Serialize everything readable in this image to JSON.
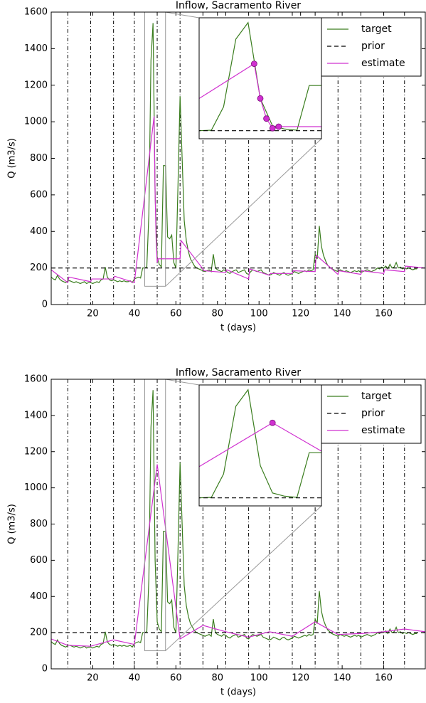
{
  "chart_data": [
    {
      "type": "line",
      "title": "Inflow, Sacramento River",
      "xlabel": "t (days)",
      "ylabel": "Q (m3/s)",
      "xlim": [
        0,
        180
      ],
      "ylim": [
        0,
        1600
      ],
      "xticks": [
        20,
        40,
        60,
        80,
        100,
        120,
        140,
        160
      ],
      "yticks": [
        0,
        200,
        400,
        600,
        800,
        1000,
        1200,
        1400,
        1600
      ],
      "vlines": [
        8,
        19,
        30,
        40,
        51,
        62,
        73,
        84,
        95,
        105,
        116,
        127,
        138,
        149,
        160,
        170
      ],
      "legend": "upper right",
      "inset": {
        "xlim": [
          45,
          55
        ],
        "ylim": [
          100,
          1600
        ]
      },
      "series": [
        {
          "name": "target",
          "color": "#3a7d1e",
          "linestyle": "solid",
          "x": [
            0,
            1,
            2,
            3,
            4,
            5,
            6,
            7,
            8,
            9,
            10,
            11,
            12,
            13,
            14,
            15,
            16,
            17,
            18,
            19,
            20,
            21,
            22,
            23,
            24,
            25,
            26,
            27,
            28,
            29,
            30,
            31,
            32,
            33,
            34,
            35,
            36,
            37,
            38,
            39,
            40,
            41,
            42,
            43,
            44,
            45,
            46,
            47,
            48,
            49,
            50,
            51,
            52,
            53,
            54,
            55,
            56,
            57,
            58,
            59,
            60,
            61,
            62,
            63,
            64,
            65,
            66,
            67,
            68,
            69,
            70,
            71,
            72,
            73,
            74,
            75,
            76,
            77,
            78,
            79,
            80,
            81,
            82,
            83,
            84,
            85,
            86,
            87,
            88,
            89,
            90,
            91,
            92,
            93,
            94,
            95,
            96,
            97,
            98,
            99,
            100,
            101,
            102,
            103,
            104,
            105,
            106,
            107,
            108,
            109,
            110,
            111,
            112,
            113,
            114,
            115,
            116,
            117,
            118,
            119,
            120,
            121,
            122,
            123,
            124,
            125,
            126,
            127,
            128,
            129,
            130,
            131,
            132,
            133,
            134,
            135,
            136,
            137,
            138,
            139,
            140,
            141,
            142,
            143,
            144,
            145,
            146,
            147,
            148,
            149,
            150,
            151,
            152,
            153,
            154,
            155,
            156,
            157,
            158,
            159,
            160,
            161,
            162,
            163,
            164,
            165,
            166,
            167,
            168,
            169,
            170,
            171,
            172,
            173,
            174,
            175,
            176
          ],
          "values": [
            150,
            140,
            135,
            160,
            140,
            130,
            125,
            120,
            130,
            130,
            125,
            120,
            125,
            120,
            115,
            120,
            125,
            115,
            120,
            120,
            115,
            120,
            125,
            120,
            135,
            140,
            205,
            150,
            135,
            130,
            135,
            130,
            125,
            130,
            125,
            130,
            125,
            125,
            130,
            120,
            140,
            145,
            150,
            145,
            200,
            200,
            206,
            497,
            1335,
            1540,
            600,
            260,
            220,
            206,
            760,
            760,
            370,
            360,
            380,
            230,
            200,
            650,
            1140,
            800,
            460,
            350,
            290,
            250,
            230,
            210,
            200,
            195,
            190,
            185,
            180,
            185,
            190,
            180,
            275,
            200,
            190,
            185,
            180,
            190,
            185,
            175,
            170,
            180,
            185,
            190,
            175,
            180,
            185,
            190,
            170,
            165,
            180,
            190,
            185,
            180,
            185,
            190,
            175,
            170,
            165,
            160,
            165,
            175,
            170,
            165,
            160,
            170,
            175,
            165,
            160,
            165,
            170,
            180,
            175,
            170,
            175,
            180,
            185,
            180,
            190,
            185,
            190,
            275,
            250,
            430,
            320,
            270,
            240,
            215,
            205,
            195,
            190,
            185,
            180,
            190,
            185,
            180,
            185,
            180,
            175,
            180,
            185,
            180,
            185,
            175,
            180,
            185,
            190,
            185,
            180,
            185,
            190,
            200,
            195,
            205,
            200,
            210,
            195,
            220,
            200,
            205,
            230,
            200,
            205,
            195,
            200,
            195,
            200,
            195,
            190,
            195,
            195
          ]
        },
        {
          "name": "prior",
          "color": "#000000",
          "linestyle": "dashed",
          "x": [
            0,
            180
          ],
          "values": [
            200,
            200
          ]
        },
        {
          "name": "estimate",
          "color": "#d030d0",
          "linestyle": "solid",
          "inset_markers": true,
          "x": [
            0,
            8,
            8.5,
            19,
            19.5,
            30,
            30.5,
            40,
            49.5,
            50,
            50.5,
            51,
            51.5,
            62,
            62.5,
            73,
            73.5,
            84,
            84.5,
            95,
            95.5,
            105,
            105.5,
            116,
            116.5,
            127,
            127.5,
            138,
            138.5,
            149,
            149.5,
            160,
            160.5,
            170,
            170.5,
            180
          ],
          "values": [
            190,
            120,
            150,
            125,
            140,
            140,
            155,
            120,
            1030,
            600,
            350,
            230,
            250,
            250,
            350,
            195,
            185,
            175,
            190,
            140,
            195,
            160,
            170,
            170,
            185,
            180,
            270,
            165,
            185,
            165,
            185,
            170,
            190,
            180,
            210,
            200
          ]
        }
      ]
    },
    {
      "type": "line",
      "title": "Inflow, Sacramento River",
      "xlabel": "t (days)",
      "ylabel": "Q (m3/s)",
      "xlim": [
        0,
        180
      ],
      "ylim": [
        0,
        1600
      ],
      "xticks": [
        20,
        40,
        60,
        80,
        100,
        120,
        140,
        160
      ],
      "yticks": [
        0,
        200,
        400,
        600,
        800,
        1000,
        1200,
        1400,
        1600
      ],
      "vlines": [
        8,
        19,
        30,
        40,
        51,
        62,
        73,
        84,
        95,
        105,
        116,
        127,
        138,
        149,
        160,
        170
      ],
      "legend": "upper right",
      "inset": {
        "xlim": [
          45,
          55
        ],
        "ylim": [
          100,
          1600
        ]
      },
      "series": [
        {
          "name": "target",
          "color": "#3a7d1e",
          "linestyle": "solid",
          "x": [
            0,
            1,
            2,
            3,
            4,
            5,
            6,
            7,
            8,
            9,
            10,
            11,
            12,
            13,
            14,
            15,
            16,
            17,
            18,
            19,
            20,
            21,
            22,
            23,
            24,
            25,
            26,
            27,
            28,
            29,
            30,
            31,
            32,
            33,
            34,
            35,
            36,
            37,
            38,
            39,
            40,
            41,
            42,
            43,
            44,
            45,
            46,
            47,
            48,
            49,
            50,
            51,
            52,
            53,
            54,
            55,
            56,
            57,
            58,
            59,
            60,
            61,
            62,
            63,
            64,
            65,
            66,
            67,
            68,
            69,
            70,
            71,
            72,
            73,
            74,
            75,
            76,
            77,
            78,
            79,
            80,
            81,
            82,
            83,
            84,
            85,
            86,
            87,
            88,
            89,
            90,
            91,
            92,
            93,
            94,
            95,
            96,
            97,
            98,
            99,
            100,
            101,
            102,
            103,
            104,
            105,
            106,
            107,
            108,
            109,
            110,
            111,
            112,
            113,
            114,
            115,
            116,
            117,
            118,
            119,
            120,
            121,
            122,
            123,
            124,
            125,
            126,
            127,
            128,
            129,
            130,
            131,
            132,
            133,
            134,
            135,
            136,
            137,
            138,
            139,
            140,
            141,
            142,
            143,
            144,
            145,
            146,
            147,
            148,
            149,
            150,
            151,
            152,
            153,
            154,
            155,
            156,
            157,
            158,
            159,
            160,
            161,
            162,
            163,
            164,
            165,
            166,
            167,
            168,
            169,
            170,
            171,
            172,
            173,
            174,
            175,
            176
          ],
          "values": [
            150,
            140,
            135,
            160,
            140,
            130,
            125,
            120,
            130,
            130,
            125,
            120,
            125,
            120,
            115,
            120,
            125,
            115,
            120,
            120,
            115,
            120,
            125,
            120,
            135,
            140,
            205,
            150,
            135,
            130,
            135,
            130,
            125,
            130,
            125,
            130,
            125,
            125,
            130,
            120,
            140,
            145,
            150,
            145,
            200,
            200,
            206,
            497,
            1335,
            1540,
            600,
            260,
            220,
            206,
            760,
            760,
            370,
            360,
            380,
            230,
            200,
            650,
            1140,
            800,
            460,
            350,
            290,
            250,
            230,
            210,
            200,
            195,
            190,
            185,
            180,
            185,
            190,
            180,
            275,
            200,
            190,
            185,
            180,
            190,
            185,
            175,
            170,
            180,
            185,
            190,
            175,
            180,
            185,
            190,
            170,
            165,
            180,
            190,
            185,
            180,
            185,
            190,
            175,
            170,
            165,
            160,
            165,
            175,
            170,
            165,
            160,
            170,
            175,
            165,
            160,
            165,
            170,
            180,
            175,
            170,
            175,
            180,
            185,
            180,
            190,
            185,
            190,
            275,
            250,
            430,
            320,
            270,
            240,
            215,
            205,
            195,
            190,
            185,
            180,
            190,
            185,
            180,
            185,
            180,
            175,
            180,
            185,
            180,
            185,
            175,
            180,
            185,
            190,
            185,
            180,
            185,
            190,
            200,
            195,
            205,
            200,
            210,
            195,
            220,
            200,
            205,
            230,
            200,
            205,
            195,
            200,
            195,
            200,
            195,
            190,
            195,
            195
          ]
        },
        {
          "name": "prior",
          "color": "#000000",
          "linestyle": "dashed",
          "x": [
            0,
            180
          ],
          "values": [
            200,
            200
          ]
        },
        {
          "name": "estimate",
          "color": "#d030d0",
          "linestyle": "solid",
          "inset_markers": true,
          "x": [
            0,
            8,
            19,
            30,
            40,
            51,
            62,
            73,
            84,
            95,
            105,
            116,
            127,
            138,
            149,
            160,
            170,
            180
          ],
          "values": [
            165,
            130,
            125,
            160,
            135,
            1130,
            165,
            240,
            205,
            175,
            205,
            180,
            260,
            190,
            195,
            205,
            220,
            205
          ]
        }
      ]
    }
  ]
}
